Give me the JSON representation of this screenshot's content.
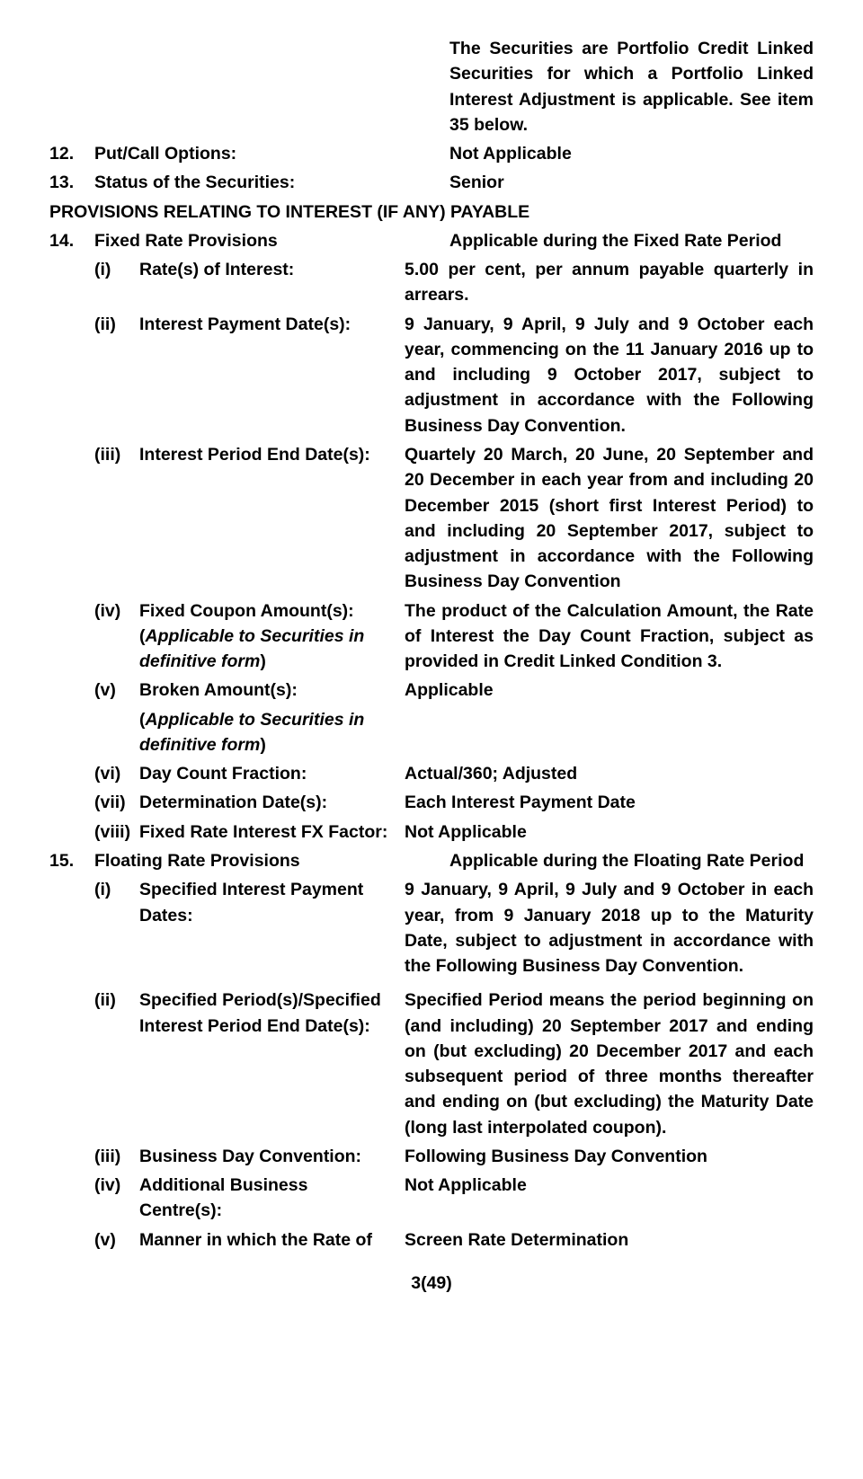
{
  "intro": "The Securities are Portfolio Credit Linked Securities for which a Portfolio Linked Interest Adjustment is applicable. See item 35 below.",
  "item12": {
    "num": "12.",
    "label": "Put/Call Options:",
    "value": "Not Applicable"
  },
  "item13": {
    "num": "13.",
    "label": "Status of the Securities:",
    "value": "Senior"
  },
  "section_interest": "PROVISIONS RELATING TO INTEREST (IF ANY) PAYABLE",
  "item14": {
    "num": "14.",
    "label": "Fixed Rate Provisions",
    "value": "Applicable during the Fixed Rate Period",
    "i": {
      "r": "(i)",
      "label": "Rate(s) of Interest:",
      "value": "5.00 per cent, per annum payable quarterly in arrears."
    },
    "ii": {
      "r": "(ii)",
      "label": "Interest Payment Date(s):",
      "value": "9 January, 9 April, 9 July and 9 October each year, commencing on the 11 January 2016 up to and including 9 October 2017, subject to adjustment in accordance with the Following Business Day Convention."
    },
    "iii": {
      "r": "(iii)",
      "label": "Interest Period End Date(s):",
      "value": "Quartely 20 March, 20 June, 20 September and 20 December in each year from and including 20 December 2015 (short first Interest Period) to and including 20 September 2017, subject to adjustment in accordance with the Following Business Day Convention"
    },
    "iv": {
      "r": "(iv)",
      "label": "Fixed Coupon Amount(s):",
      "note_open": "(",
      "note": "Applicable to Securities in definitive form",
      "note_close": ")",
      "value": "The product of the Calculation Amount, the Rate of Interest the Day Count Fraction, subject as provided in Credit Linked Condition 3."
    },
    "v": {
      "r": "(v)",
      "label": "Broken Amount(s):",
      "note_open": "(",
      "note": "Applicable to Securities in definitive form",
      "note_close": ")",
      "value": "Applicable"
    },
    "vi": {
      "r": "(vi)",
      "label": "Day Count Fraction:",
      "value": "Actual/360; Adjusted"
    },
    "vii": {
      "r": "(vii)",
      "label": "Determination Date(s):",
      "value": "Each Interest Payment Date"
    },
    "viii": {
      "r": "(viii)",
      "label": "Fixed Rate Interest FX Factor:",
      "value": "Not Applicable"
    }
  },
  "item15": {
    "num": "15.",
    "label": "Floating Rate Provisions",
    "value": "Applicable during the Floating Rate Period",
    "i": {
      "r": "(i)",
      "label": "Specified Interest Payment Dates:",
      "value": "9 January, 9 April, 9 July and 9 October in each year, from 9 January 2018 up to the Maturity Date, subject to adjustment in accordance with the Following Business Day Convention."
    },
    "ii": {
      "r": "(ii)",
      "label": "Specified Period(s)/Specified Interest Period End Date(s):",
      "value": "Specified Period means the period beginning on (and including) 20 September 2017 and ending on (but excluding) 20 December 2017 and each subsequent period of three months thereafter and ending on (but excluding) the Maturity Date (long last interpolated coupon)."
    },
    "iii": {
      "r": "(iii)",
      "label": "Business Day Convention:",
      "value": "Following Business Day Convention"
    },
    "iv": {
      "r": "(iv)",
      "label": "Additional Business Centre(s):",
      "value": "Not Applicable"
    },
    "v": {
      "r": "(v)",
      "label": "Manner in which the Rate of",
      "value": "Screen Rate Determination"
    }
  },
  "footer": "3(49)"
}
